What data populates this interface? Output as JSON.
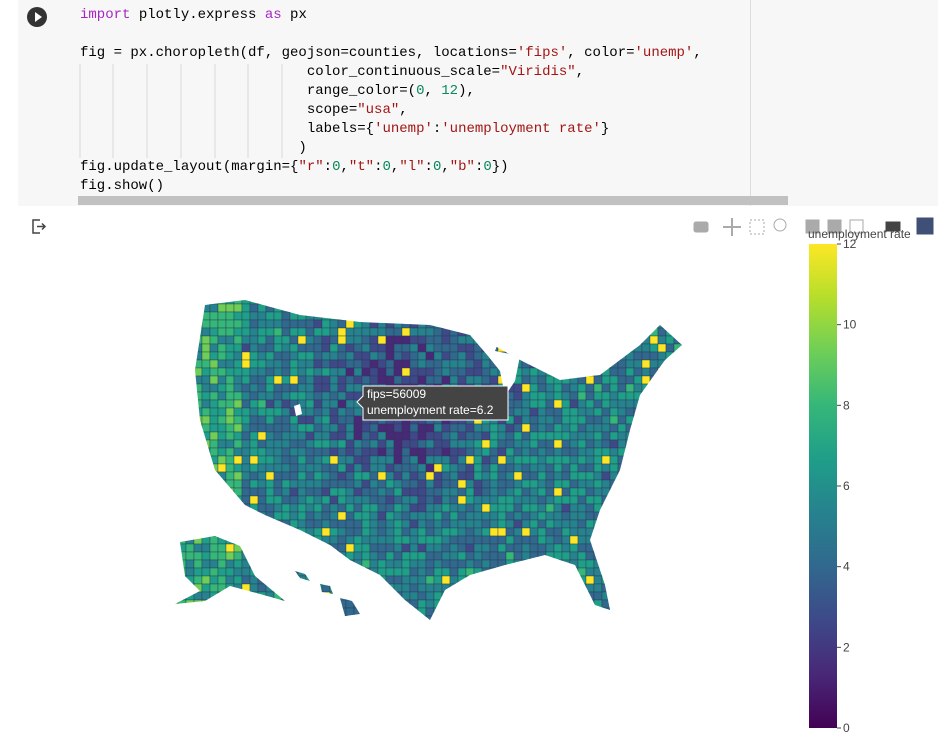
{
  "code": {
    "lines": [
      {
        "tokens": [
          {
            "text": "import",
            "color": "#a626c4"
          },
          {
            "text": " plotly.express "
          },
          {
            "text": "as",
            "color": "#a626c4"
          },
          {
            "text": " px"
          }
        ]
      },
      {
        "tokens": []
      },
      {
        "tokens": [
          {
            "text": "fig = px.choropleth(df, geojson=counties, locations="
          },
          {
            "text": "'fips'",
            "color": "#a31515"
          },
          {
            "text": ", color="
          },
          {
            "text": "'unemp'",
            "color": "#a31515"
          },
          {
            "text": ","
          }
        ]
      },
      {
        "tokens": [
          {
            "text": "                           color_continuous_scale="
          },
          {
            "text": "\"Viridis\"",
            "color": "#a31515"
          },
          {
            "text": ","
          }
        ]
      },
      {
        "tokens": [
          {
            "text": "                           range_color=("
          },
          {
            "text": "0",
            "color": "#09885a"
          },
          {
            "text": ", "
          },
          {
            "text": "12",
            "color": "#09885a"
          },
          {
            "text": "),"
          }
        ]
      },
      {
        "tokens": [
          {
            "text": "                           scope="
          },
          {
            "text": "\"usa\"",
            "color": "#a31515"
          },
          {
            "text": ","
          }
        ]
      },
      {
        "tokens": [
          {
            "text": "                           labels={"
          },
          {
            "text": "'unemp'",
            "color": "#a31515"
          },
          {
            "text": ":"
          },
          {
            "text": "'unemployment rate'",
            "color": "#a31515"
          },
          {
            "text": "}"
          }
        ]
      },
      {
        "tokens": [
          {
            "text": "                          )"
          }
        ]
      },
      {
        "tokens": [
          {
            "text": "fig.update_layout(margin={"
          },
          {
            "text": "\"r\"",
            "color": "#a31515"
          },
          {
            "text": ":"
          },
          {
            "text": "0",
            "color": "#09885a"
          },
          {
            "text": ","
          },
          {
            "text": "\"t\"",
            "color": "#a31515"
          },
          {
            "text": ":"
          },
          {
            "text": "0",
            "color": "#09885a"
          },
          {
            "text": ","
          },
          {
            "text": "\"l\"",
            "color": "#a31515"
          },
          {
            "text": ":"
          },
          {
            "text": "0",
            "color": "#09885a"
          },
          {
            "text": ","
          },
          {
            "text": "\"b\"",
            "color": "#a31515"
          },
          {
            "text": ":"
          },
          {
            "text": "0",
            "color": "#09885a"
          },
          {
            "text": "})"
          }
        ]
      },
      {
        "tokens": [
          {
            "text": "fig.show()"
          }
        ]
      }
    ]
  },
  "hover": {
    "lines": [
      "fips=56009",
      "unemployment rate=6.2"
    ]
  },
  "colorbar": {
    "title": "unemployment rate",
    "range": [
      0,
      12
    ],
    "ticks": [
      0,
      2,
      4,
      6,
      8,
      10,
      12
    ],
    "colors": [
      "#440154",
      "#482878",
      "#3e4989",
      "#31688e",
      "#26828e",
      "#1f9e89",
      "#35b779",
      "#6ece58",
      "#b5de2b",
      "#fde725"
    ]
  }
}
